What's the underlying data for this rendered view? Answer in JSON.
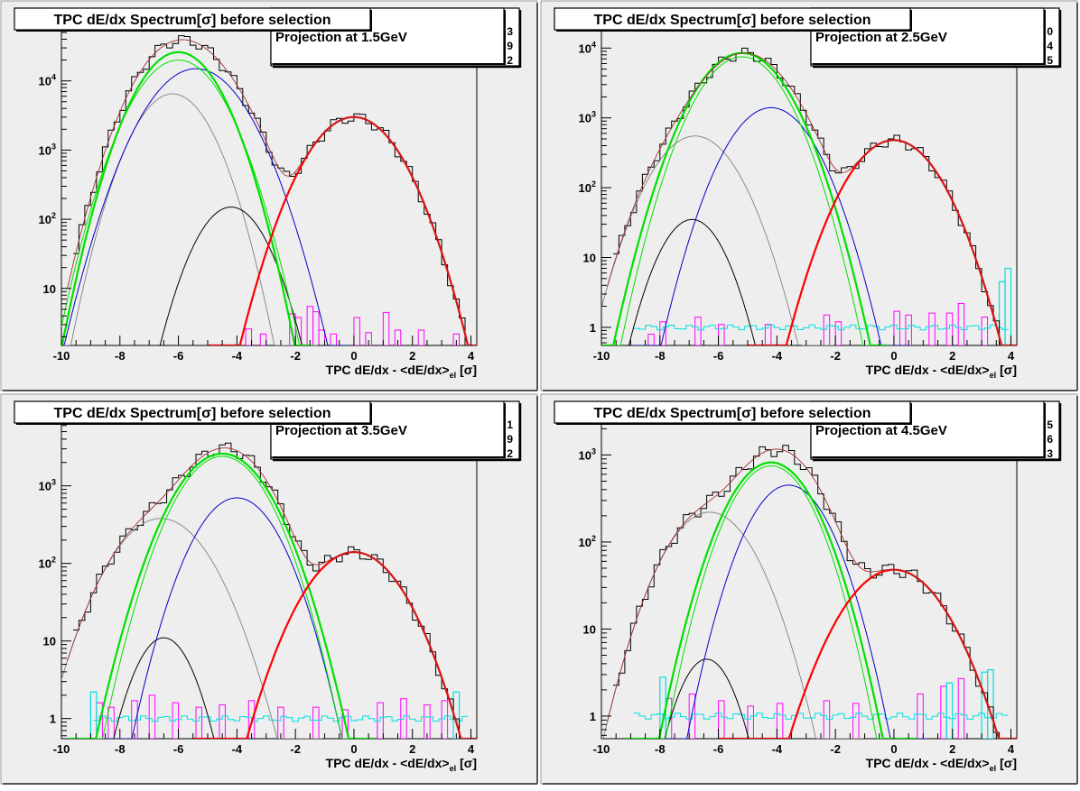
{
  "canvas_bg": "#ffffff",
  "pad_bg": "#eeeeee",
  "colors": {
    "data": "#000000",
    "total_fit": "#a03030",
    "electron": "#ff0000",
    "pion": "#00e000",
    "kaon": "#0000c8",
    "proton": "#808080",
    "deuteron": "#000000",
    "merged": "#ff00ff",
    "ratio": "#00e0e0"
  },
  "chart_data": [
    {
      "type": "line",
      "title": "TPC dE/dx Spectrum[σ] before selection",
      "subtitle": "Projection at 1.5GeV",
      "stats_digits": [
        "3",
        "9",
        "2"
      ],
      "xlabel_main": "TPC dE/dx - <dE/dx>",
      "xlabel_sub": "el",
      "xlabel_unit": "[σ]",
      "xlim": [
        -10,
        4.2
      ],
      "ylim": [
        1.5,
        60000
      ],
      "yscale": "log",
      "xticks": [
        "-10",
        "-8",
        "-6",
        "-4",
        "-2",
        "0",
        "2",
        "4"
      ],
      "yticks": [
        {
          "v": 10,
          "label": "10"
        },
        {
          "v": 100,
          "label": "10",
          "exp": "2"
        },
        {
          "v": 1000,
          "label": "10",
          "exp": "3"
        },
        {
          "v": 10000,
          "label": "10",
          "exp": "4"
        }
      ],
      "curves": [
        {
          "name": "electron",
          "amp": 3000,
          "mu": 0.0,
          "sigma": 1.0
        },
        {
          "name": "pion",
          "amp": 20000,
          "mu": -6.0,
          "sigma": 0.95
        },
        {
          "name": "pion2",
          "amp": 26000,
          "mu": -6.0,
          "sigma": 0.9
        },
        {
          "name": "kaon",
          "amp": 15000,
          "mu": -5.4,
          "sigma": 1.05
        },
        {
          "name": "proton",
          "amp": 6500,
          "mu": -6.2,
          "sigma": 0.85
        },
        {
          "name": "deuteron",
          "amp": 150,
          "mu": -4.2,
          "sigma": 0.8
        }
      ],
      "merged_hist": [
        {
          "x": -3.6,
          "y": 2.6
        },
        {
          "x": -3.1,
          "y": 2.2
        },
        {
          "x": -2.1,
          "y": 4.3
        },
        {
          "x": -1.9,
          "y": 3.8
        },
        {
          "x": -1.5,
          "y": 5.5
        },
        {
          "x": -1.3,
          "y": 4.6
        },
        {
          "x": -1.1,
          "y": 2.5
        },
        {
          "x": -0.7,
          "y": 2.2
        },
        {
          "x": 0.1,
          "y": 3.8
        },
        {
          "x": 0.5,
          "y": 2.3
        },
        {
          "x": 1.1,
          "y": 4.5
        },
        {
          "x": 1.5,
          "y": 2.5
        },
        {
          "x": 2.3,
          "y": 2.5
        },
        {
          "x": 3.5,
          "y": 2.2
        }
      ],
      "ratio_hist": [],
      "ratio_level": null
    },
    {
      "type": "line",
      "title": "TPC dE/dx Spectrum[σ] before selection",
      "subtitle": "Projection at 2.5GeV",
      "stats_digits": [
        "0",
        "4",
        "5"
      ],
      "xlabel_main": "TPC dE/dx - <dE/dx>",
      "xlabel_sub": "el",
      "xlabel_unit": "[σ]",
      "xlim": [
        -10,
        4.2
      ],
      "ylim": [
        0.55,
        20000
      ],
      "yscale": "log",
      "xticks": [
        "-10",
        "-8",
        "-6",
        "-4",
        "-2",
        "0",
        "2",
        "4"
      ],
      "yticks": [
        {
          "v": 1,
          "label": "1"
        },
        {
          "v": 10,
          "label": "10"
        },
        {
          "v": 100,
          "label": "10",
          "exp": "2"
        },
        {
          "v": 1000,
          "label": "10",
          "exp": "3"
        },
        {
          "v": 10000,
          "label": "10",
          "exp": "4"
        }
      ],
      "curves": [
        {
          "name": "electron",
          "amp": 480,
          "mu": 0.0,
          "sigma": 1.0
        },
        {
          "name": "pion",
          "amp": 7500,
          "mu": -5.2,
          "sigma": 0.95
        },
        {
          "name": "pion2",
          "amp": 8500,
          "mu": -5.2,
          "sigma": 1.0
        },
        {
          "name": "kaon",
          "amp": 1400,
          "mu": -4.2,
          "sigma": 0.95
        },
        {
          "name": "proton",
          "amp": 550,
          "mu": -6.8,
          "sigma": 0.95
        },
        {
          "name": "deuteron",
          "amp": 35,
          "mu": -6.9,
          "sigma": 0.75
        }
      ],
      "merged_hist": [
        {
          "x": -8.3,
          "y": 0.8
        },
        {
          "x": -7.9,
          "y": 1.2
        },
        {
          "x": -6.7,
          "y": 1.4
        },
        {
          "x": -5.9,
          "y": 1.1
        },
        {
          "x": -4.3,
          "y": 1.1
        },
        {
          "x": -2.3,
          "y": 1.5
        },
        {
          "x": -1.9,
          "y": 1.2
        },
        {
          "x": 0.1,
          "y": 1.7
        },
        {
          "x": 0.5,
          "y": 1.5
        },
        {
          "x": 1.3,
          "y": 1.6
        },
        {
          "x": 1.9,
          "y": 1.6
        },
        {
          "x": 2.3,
          "y": 2.2
        },
        {
          "x": 3.1,
          "y": 1.4
        }
      ],
      "ratio_hist": [
        {
          "x": 3.7,
          "y": 4.5
        },
        {
          "x": 3.9,
          "y": 7.0
        }
      ],
      "ratio_level": 1.0
    },
    {
      "type": "line",
      "title": "TPC dE/dx Spectrum[σ] before selection",
      "subtitle": "Projection at 3.5GeV",
      "stats_digits": [
        "1",
        "9",
        "2"
      ],
      "xlabel_main": "TPC dE/dx - <dE/dx>",
      "xlabel_sub": "el",
      "xlabel_unit": "[σ]",
      "xlim": [
        -10,
        4.2
      ],
      "ylim": [
        0.55,
        7000
      ],
      "yscale": "log",
      "xticks": [
        "-10",
        "-8",
        "-6",
        "-4",
        "-2",
        "0",
        "2",
        "4"
      ],
      "yticks": [
        {
          "v": 1,
          "label": "1"
        },
        {
          "v": 10,
          "label": "10"
        },
        {
          "v": 100,
          "label": "10",
          "exp": "2"
        },
        {
          "v": 1000,
          "label": "10",
          "exp": "3"
        }
      ],
      "curves": [
        {
          "name": "electron",
          "amp": 140,
          "mu": 0.0,
          "sigma": 1.1
        },
        {
          "name": "pion",
          "amp": 2400,
          "mu": -4.5,
          "sigma": 1.0
        },
        {
          "name": "pion2",
          "amp": 2600,
          "mu": -4.5,
          "sigma": 1.05
        },
        {
          "name": "kaon",
          "amp": 700,
          "mu": -4.0,
          "sigma": 0.95
        },
        {
          "name": "proton",
          "amp": 380,
          "mu": -6.6,
          "sigma": 1.1
        },
        {
          "name": "deuteron",
          "amp": 11,
          "mu": -6.5,
          "sigma": 0.7
        }
      ],
      "merged_hist": [
        {
          "x": -8.7,
          "y": 1.6
        },
        {
          "x": -8.3,
          "y": 1.4
        },
        {
          "x": -7.5,
          "y": 1.7
        },
        {
          "x": -6.9,
          "y": 2.0
        },
        {
          "x": -6.1,
          "y": 1.6
        },
        {
          "x": -5.3,
          "y": 1.4
        },
        {
          "x": -4.5,
          "y": 1.5
        },
        {
          "x": -3.5,
          "y": 1.7
        },
        {
          "x": -2.5,
          "y": 1.4
        },
        {
          "x": -1.3,
          "y": 1.4
        },
        {
          "x": -0.3,
          "y": 1.3
        },
        {
          "x": 0.9,
          "y": 1.6
        },
        {
          "x": 1.7,
          "y": 1.8
        },
        {
          "x": 2.5,
          "y": 1.5
        },
        {
          "x": 3.1,
          "y": 1.7
        }
      ],
      "ratio_hist": [
        {
          "x": -8.9,
          "y": 2.2
        },
        {
          "x": 3.5,
          "y": 2.2
        }
      ],
      "ratio_level": 1.0
    },
    {
      "type": "line",
      "title": "TPC dE/dx Spectrum[σ] before selection",
      "subtitle": "Projection at 4.5GeV",
      "stats_digits": [
        "5",
        "6",
        "3"
      ],
      "xlabel_main": "TPC dE/dx - <dE/dx>",
      "xlabel_sub": "el",
      "xlabel_unit": "[σ]",
      "xlim": [
        -10,
        4.2
      ],
      "ylim": [
        0.55,
        2500
      ],
      "yscale": "log",
      "xticks": [
        "-10",
        "-8",
        "-6",
        "-4",
        "-2",
        "0",
        "2",
        "4"
      ],
      "yticks": [
        {
          "v": 1,
          "label": "1"
        },
        {
          "v": 10,
          "label": "10"
        },
        {
          "v": 100,
          "label": "10",
          "exp": "2"
        },
        {
          "v": 1000,
          "label": "10",
          "exp": "3"
        }
      ],
      "curves": [
        {
          "name": "electron",
          "amp": 48,
          "mu": 0.0,
          "sigma": 1.2
        },
        {
          "name": "pion",
          "amp": 750,
          "mu": -4.2,
          "sigma": 0.95
        },
        {
          "name": "pion2",
          "amp": 820,
          "mu": -4.2,
          "sigma": 1.0
        },
        {
          "name": "kaon",
          "amp": 450,
          "mu": -3.6,
          "sigma": 0.95
        },
        {
          "name": "proton",
          "amp": 220,
          "mu": -6.3,
          "sigma": 1.05
        },
        {
          "name": "deuteron",
          "amp": 4.5,
          "mu": -6.4,
          "sigma": 0.7
        }
      ],
      "merged_hist": [
        {
          "x": -7.7,
          "y": 1.6
        },
        {
          "x": -6.9,
          "y": 1.8
        },
        {
          "x": -5.9,
          "y": 1.5
        },
        {
          "x": -4.9,
          "y": 1.3
        },
        {
          "x": -3.9,
          "y": 1.4
        },
        {
          "x": -2.3,
          "y": 1.5
        },
        {
          "x": -1.3,
          "y": 1.4
        },
        {
          "x": 0.9,
          "y": 1.8
        },
        {
          "x": 1.7,
          "y": 2.2
        },
        {
          "x": 2.3,
          "y": 2.7
        }
      ],
      "ratio_hist": [
        {
          "x": -7.9,
          "y": 2.8
        },
        {
          "x": 1.9,
          "y": 2.4
        },
        {
          "x": 3.1,
          "y": 3.2
        },
        {
          "x": 3.3,
          "y": 3.4
        }
      ],
      "ratio_level": 1.0
    }
  ]
}
